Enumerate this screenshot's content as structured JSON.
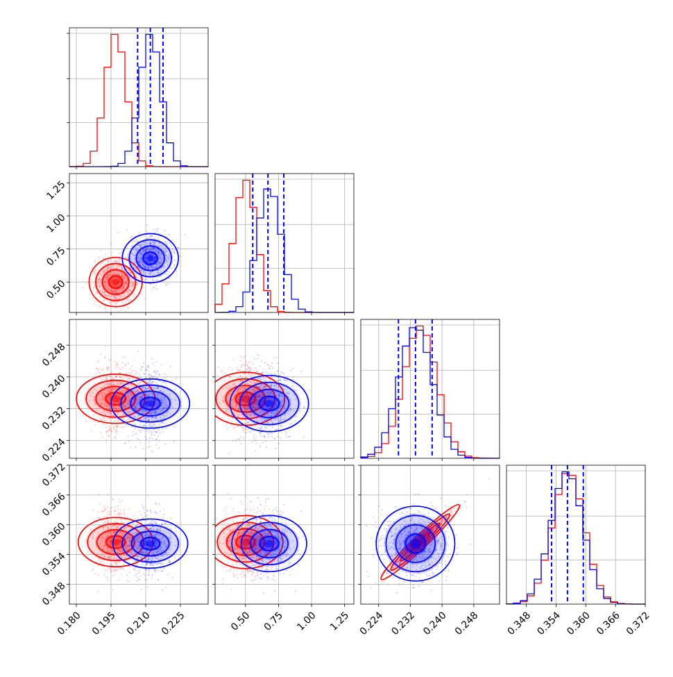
{
  "chart_data": {
    "type": "corner",
    "parameters": 4,
    "title": "",
    "colors": {
      "series_a": "#ff0000",
      "series_b": "#0000ff",
      "quantiles": "#0000ff",
      "grid": "#b0b0b0"
    },
    "series": [
      {
        "color": "#ff0000",
        "means": [
          0.197,
          0.5,
          0.2345,
          0.3565
        ],
        "sds": [
          0.0045,
          0.085,
          0.0042,
          0.0032
        ]
      },
      {
        "color": "#0000ff",
        "means": [
          0.212,
          0.68,
          0.2333,
          0.3562
        ],
        "sds": [
          0.0045,
          0.09,
          0.0042,
          0.0032
        ]
      }
    ],
    "correlations": [
      [
        0,
        3,
        2,
        0.97
      ]
    ],
    "axes": [
      {
        "range": [
          0.177,
          0.237
        ],
        "ticks": [
          "0.180",
          "0.195",
          "0.210",
          "0.225"
        ],
        "tick_values": [
          0.18,
          0.195,
          0.21,
          0.225
        ]
      },
      {
        "range": [
          0.27,
          1.32
        ],
        "ticks": [
          "0.50",
          "0.75",
          "1.00",
          "1.25"
        ],
        "tick_values": [
          0.5,
          0.75,
          1.0,
          1.25
        ]
      },
      {
        "range": [
          0.2195,
          0.2545
        ],
        "ticks": [
          "0.224",
          "0.232",
          "0.240",
          "0.248"
        ],
        "tick_values": [
          0.224,
          0.232,
          0.24,
          0.248
        ]
      },
      {
        "range": [
          0.344,
          0.372
        ],
        "ticks": [
          "0.348",
          "0.354",
          "0.360",
          "0.366",
          "0.372"
        ],
        "tick_values": [
          0.348,
          0.354,
          0.36,
          0.366,
          0.372
        ]
      }
    ],
    "quantile_lines": [
      [
        0.2065,
        0.212,
        0.2175
      ],
      [
        0.555,
        0.67,
        0.79
      ],
      [
        0.229,
        0.2333,
        0.2375
      ],
      [
        0.3531,
        0.3563,
        0.3595
      ]
    ],
    "grid": true,
    "legend": "none"
  }
}
